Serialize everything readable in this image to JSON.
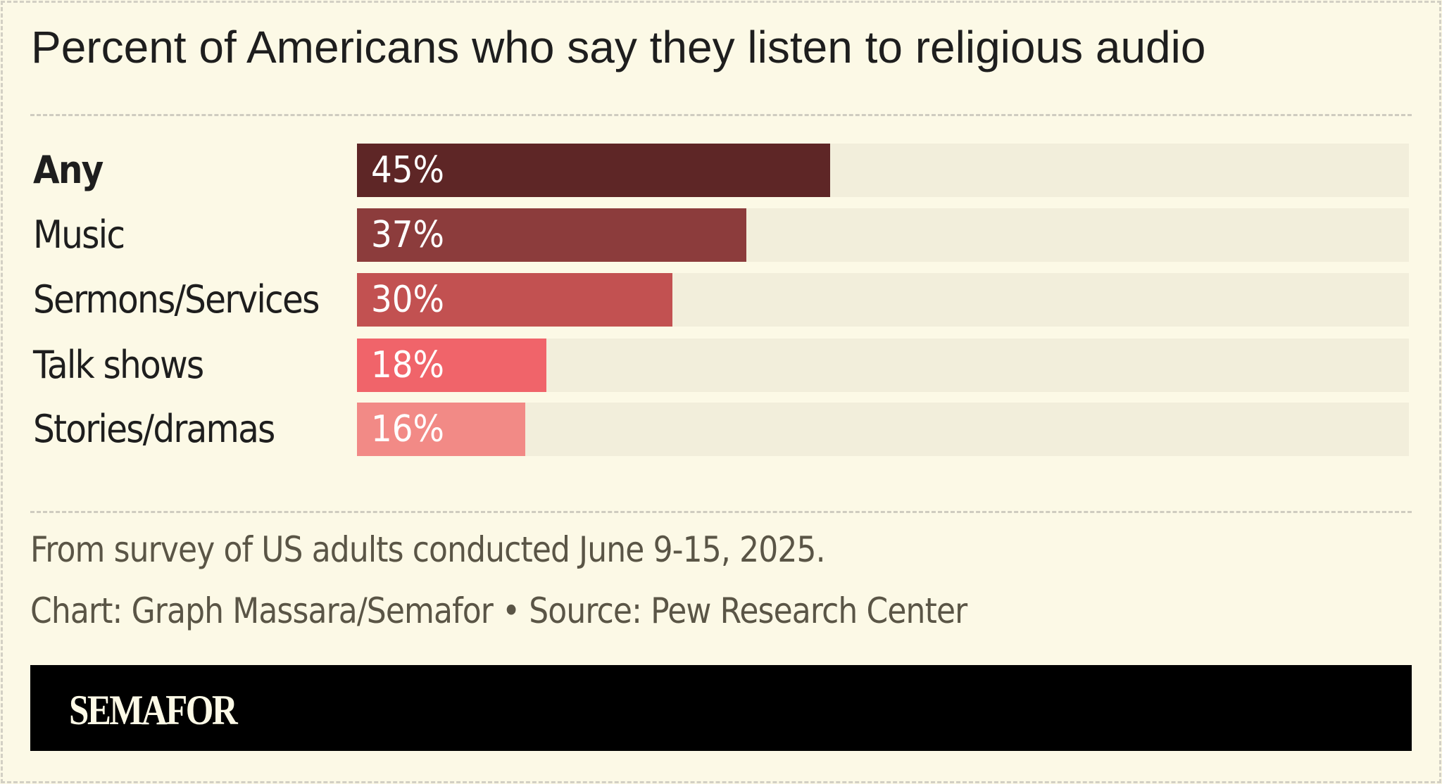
{
  "chart_data": {
    "type": "bar",
    "orientation": "horizontal",
    "title": "Percent of Americans who say they listen to religious audio",
    "categories": [
      "Any",
      "Music",
      "Sermons/Services",
      "Talk shows",
      "Stories/dramas"
    ],
    "values": [
      45,
      37,
      30,
      18,
      16
    ],
    "value_labels": [
      "45%",
      "37%",
      "30%",
      "18%",
      "16%"
    ],
    "colors": [
      "#5e2626",
      "#8c3c3c",
      "#c25151",
      "#f0646a",
      "#f28a86"
    ],
    "track_color": "#f2eedb",
    "xlim": [
      0,
      100
    ],
    "grid": false,
    "note": "From survey of US adults conducted June 9-15, 2025.",
    "credit": "Chart: Graph Massara/Semafor • Source: Pew Research Center"
  },
  "brand": {
    "logo": "SEMAFOR",
    "background": "#fcf9e6"
  }
}
